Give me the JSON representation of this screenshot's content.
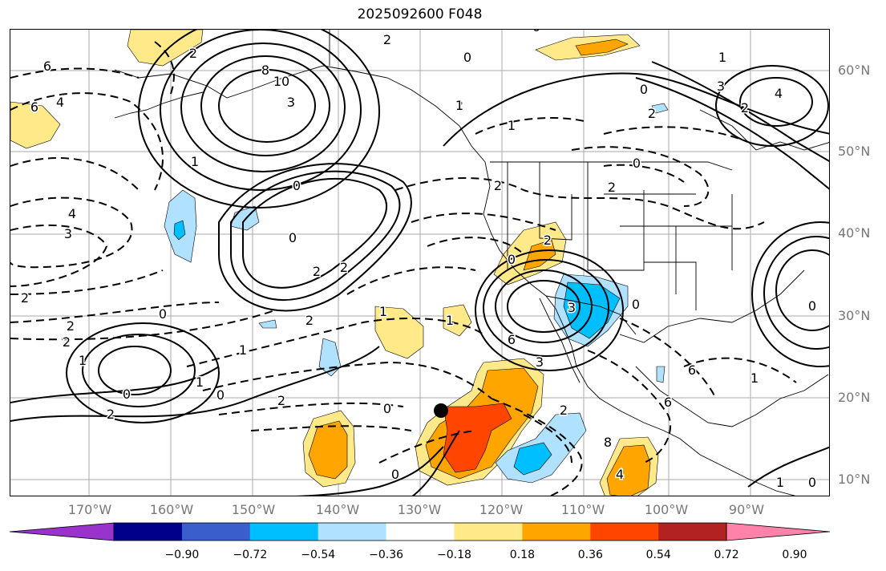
{
  "title": "2025092600 F048",
  "lat_labels": [
    "60°N",
    "50°N",
    "40°N",
    "30°N",
    "20°N",
    "10°N"
  ],
  "lon_labels": [
    "170°W",
    "160°W",
    "150°W",
    "140°W",
    "130°W",
    "120°W",
    "110°W",
    "100°W",
    "90°W"
  ],
  "colorbar": {
    "ticks": [
      "−0.90",
      "−0.72",
      "−0.54",
      "−0.36",
      "−0.18",
      "0.18",
      "0.36",
      "0.54",
      "0.72",
      "0.90"
    ],
    "colors": [
      "#9a33cc",
      "#00008b",
      "#3a5fcd",
      "#00bfff",
      "#b0e2ff",
      "#ffffff",
      "#ffe989",
      "#ffa500",
      "#ff4500",
      "#b22222",
      "#ff82ab"
    ]
  },
  "contour_labels": [
    "6",
    "4",
    "6",
    "8",
    "10",
    "3",
    "2",
    "1",
    "0",
    "1",
    "2",
    "4",
    "3",
    "2",
    "0",
    "2",
    "2",
    "1",
    "0",
    "2",
    "1",
    "0",
    "1",
    "2",
    "0",
    "2",
    "2",
    "2",
    "0",
    "1",
    "1",
    "0",
    "1",
    "1",
    "0",
    "0",
    "2",
    "2",
    "1",
    "3",
    "4",
    "2",
    "0",
    "2",
    "3",
    "0",
    "4",
    "8",
    "6",
    "2",
    "0",
    "1",
    "0",
    "0",
    "1",
    "0",
    "2",
    "2",
    "3",
    "6",
    "6"
  ],
  "marker": "storm-center"
}
